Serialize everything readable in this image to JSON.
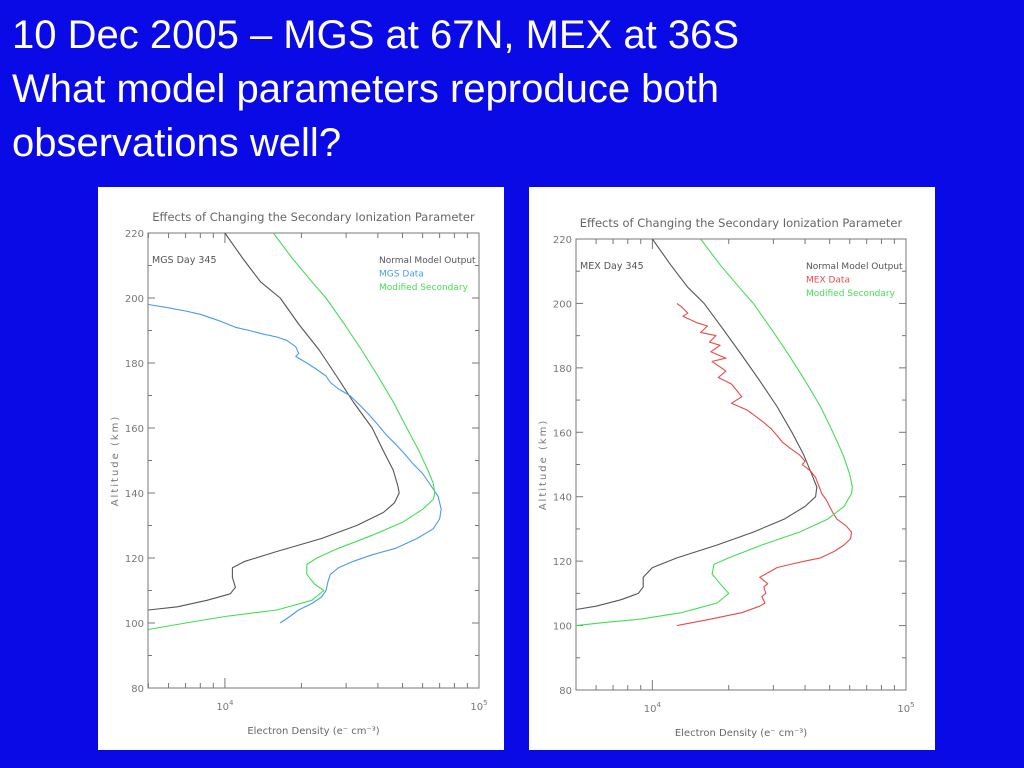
{
  "slide": {
    "title_lines": [
      "10 Dec 2005 – MGS at 67N, MEX at 36S",
      "What model parameters reproduce both",
      "observations well?"
    ]
  },
  "colors": {
    "background": "#0a0ae6",
    "normal": "#555555",
    "mgs": "#4a9be8",
    "mex": "#e84a4a",
    "modified": "#44dd55",
    "axis": "#777777"
  },
  "chart_data": [
    {
      "type": "line",
      "title": "Effects of Changing the Secondary Ionization Parameter",
      "annotation": "MGS Day 345",
      "xlabel": "Electron Density (e⁻ cm⁻³)",
      "ylabel": "Altitude (km)",
      "xscale": "log",
      "xlim": [
        4980,
        100000
      ],
      "ylim": [
        80,
        220
      ],
      "yticks": [
        80,
        100,
        120,
        140,
        160,
        180,
        200,
        220
      ],
      "ytick_labels": [
        "80",
        "100",
        "120",
        "140",
        "160",
        "180",
        "200",
        "220"
      ],
      "xtick_labels": [
        {
          "value": 10000,
          "base": "10",
          "exp": "4"
        },
        {
          "value": 100000,
          "base": "10",
          "exp": "5"
        }
      ],
      "legend_position": "top-right",
      "series": [
        {
          "name": "Normal Model Output",
          "color_key": "normal",
          "points": [
            [
              10000,
              220
            ],
            [
              11800,
              212
            ],
            [
              13800,
              205
            ],
            [
              16500,
              200
            ],
            [
              19500,
              192
            ],
            [
              23500,
              184
            ],
            [
              27500,
              176
            ],
            [
              32000,
              168
            ],
            [
              38000,
              160
            ],
            [
              42000,
              153
            ],
            [
              46000,
              147
            ],
            [
              48000,
              142
            ],
            [
              48500,
              140
            ],
            [
              46500,
              137
            ],
            [
              42000,
              134
            ],
            [
              33000,
              130
            ],
            [
              24000,
              126
            ],
            [
              16000,
              122
            ],
            [
              12000,
              119
            ],
            [
              10700,
              117
            ],
            [
              10700,
              114
            ],
            [
              11000,
              111
            ],
            [
              10500,
              109
            ],
            [
              8500,
              107
            ],
            [
              6500,
              105
            ],
            [
              5000,
              104
            ]
          ]
        },
        {
          "name": "MGS Data",
          "color_key": "mgs",
          "points": [
            [
              5000,
              198
            ],
            [
              6000,
              197
            ],
            [
              7000,
              196
            ],
            [
              8000,
              195
            ],
            [
              9500,
              193
            ],
            [
              11000,
              191
            ],
            [
              12500,
              190
            ],
            [
              14000,
              189
            ],
            [
              16000,
              188
            ],
            [
              17500,
              187
            ],
            [
              19000,
              185
            ],
            [
              19500,
              183
            ],
            [
              19000,
              182
            ],
            [
              21000,
              180
            ],
            [
              23000,
              178
            ],
            [
              25000,
              176
            ],
            [
              26000,
              174
            ],
            [
              28000,
              172
            ],
            [
              31000,
              170
            ],
            [
              34000,
              167
            ],
            [
              37000,
              164
            ],
            [
              40000,
              161
            ],
            [
              43000,
              158
            ],
            [
              47000,
              155
            ],
            [
              51000,
              152
            ],
            [
              55000,
              149
            ],
            [
              60000,
              146
            ],
            [
              65000,
              142
            ],
            [
              69000,
              139
            ],
            [
              71000,
              135
            ],
            [
              70000,
              132
            ],
            [
              66000,
              129
            ],
            [
              57000,
              126
            ],
            [
              47000,
              123
            ],
            [
              38000,
              121
            ],
            [
              32000,
              119
            ],
            [
              28000,
              117
            ],
            [
              26000,
              115
            ],
            [
              25500,
              113
            ],
            [
              25000,
              110
            ],
            [
              24000,
              108
            ],
            [
              22000,
              106
            ],
            [
              19500,
              104
            ],
            [
              18000,
              102
            ],
            [
              16500,
              100
            ]
          ]
        },
        {
          "name": "Modified Secondary",
          "color_key": "modified",
          "points": [
            [
              15500,
              220
            ],
            [
              18500,
              212
            ],
            [
              22000,
              205
            ],
            [
              25000,
              200
            ],
            [
              29500,
              192
            ],
            [
              34500,
              184
            ],
            [
              40000,
              176
            ],
            [
              46000,
              168
            ],
            [
              52000,
              160
            ],
            [
              58000,
              153
            ],
            [
              63000,
              147
            ],
            [
              66000,
              143
            ],
            [
              67000,
              140
            ],
            [
              66000,
              138
            ],
            [
              60000,
              135
            ],
            [
              50000,
              131
            ],
            [
              38000,
              127
            ],
            [
              28000,
              123
            ],
            [
              23000,
              120
            ],
            [
              21000,
              118
            ],
            [
              21000,
              115
            ],
            [
              22500,
              112
            ],
            [
              24500,
              110
            ],
            [
              22000,
              107
            ],
            [
              16000,
              104
            ],
            [
              10000,
              102
            ],
            [
              7000,
              100
            ],
            [
              5000,
              98
            ]
          ]
        }
      ]
    },
    {
      "type": "line",
      "title": "Effects of Changing the Secondary Ionization Parameter",
      "annotation": "MEX Day 345",
      "xlabel": "Electron Density (e⁻ cm⁻³)",
      "ylabel": "Altitude (km)",
      "xscale": "log",
      "xlim": [
        5000,
        100000
      ],
      "ylim": [
        80,
        220
      ],
      "yticks": [
        80,
        100,
        120,
        140,
        160,
        180,
        200,
        220
      ],
      "ytick_labels": [
        "80",
        "100",
        "120",
        "140",
        "160",
        "180",
        "200",
        "220"
      ],
      "xtick_labels": [
        {
          "value": 10000,
          "base": "10",
          "exp": "4"
        },
        {
          "value": 100000,
          "base": "10",
          "exp": "5"
        }
      ],
      "legend_position": "top-right",
      "series": [
        {
          "name": "Normal Model Output",
          "color_key": "normal",
          "points": [
            [
              10000,
              220
            ],
            [
              11800,
              212
            ],
            [
              13800,
              205
            ],
            [
              16000,
              200
            ],
            [
              19000,
              192
            ],
            [
              22500,
              184
            ],
            [
              26500,
              176
            ],
            [
              31000,
              168
            ],
            [
              35500,
              160
            ],
            [
              39500,
              153
            ],
            [
              42500,
              147
            ],
            [
              44500,
              143
            ],
            [
              44000,
              140
            ],
            [
              40000,
              137
            ],
            [
              33000,
              133
            ],
            [
              25000,
              129
            ],
            [
              18000,
              125
            ],
            [
              12500,
              121
            ],
            [
              10000,
              118
            ],
            [
              9200,
              115
            ],
            [
              9200,
              112
            ],
            [
              8800,
              110
            ],
            [
              7500,
              108
            ],
            [
              6000,
              106
            ],
            [
              5000,
              105
            ]
          ]
        },
        {
          "name": "MEX Data",
          "color_key": "mex",
          "points": [
            [
              12500,
              200
            ],
            [
              13000,
              199
            ],
            [
              13800,
              197
            ],
            [
              13200,
              196
            ],
            [
              15000,
              194
            ],
            [
              16500,
              193
            ],
            [
              15500,
              191
            ],
            [
              17800,
              190
            ],
            [
              16800,
              188
            ],
            [
              18500,
              187
            ],
            [
              17000,
              185
            ],
            [
              19500,
              183
            ],
            [
              17200,
              182
            ],
            [
              19500,
              179
            ],
            [
              18200,
              177
            ],
            [
              20500,
              175
            ],
            [
              21500,
              173
            ],
            [
              22500,
              171
            ],
            [
              20500,
              169
            ],
            [
              23500,
              167
            ],
            [
              25500,
              165
            ],
            [
              27500,
              163
            ],
            [
              29500,
              161
            ],
            [
              31000,
              159
            ],
            [
              32500,
              157
            ],
            [
              35000,
              155
            ],
            [
              38000,
              153
            ],
            [
              40000,
              151
            ],
            [
              39000,
              150
            ],
            [
              42000,
              148
            ],
            [
              44000,
              146
            ],
            [
              45500,
              143
            ],
            [
              46500,
              141
            ],
            [
              48500,
              139
            ],
            [
              50000,
              137
            ],
            [
              51500,
              135
            ],
            [
              53500,
              133
            ],
            [
              58000,
              131
            ],
            [
              61000,
              129
            ],
            [
              60500,
              127
            ],
            [
              57000,
              125
            ],
            [
              52000,
              123
            ],
            [
              46000,
              121
            ],
            [
              40000,
              120
            ],
            [
              35000,
              119
            ],
            [
              31000,
              118
            ],
            [
              28000,
              116
            ],
            [
              26500,
              115
            ],
            [
              28500,
              113
            ],
            [
              27500,
              112
            ],
            [
              28000,
              110
            ],
            [
              27000,
              109
            ],
            [
              27800,
              107
            ],
            [
              26500,
              106
            ],
            [
              22500,
              104
            ],
            [
              19500,
              103
            ],
            [
              17000,
              102
            ],
            [
              14500,
              101
            ],
            [
              12500,
              100
            ]
          ]
        },
        {
          "name": "Modified Secondary",
          "color_key": "modified",
          "points": [
            [
              15500,
              220
            ],
            [
              18500,
              212
            ],
            [
              22000,
              205
            ],
            [
              25000,
              200
            ],
            [
              29500,
              192
            ],
            [
              34500,
              184
            ],
            [
              40000,
              176
            ],
            [
              46000,
              168
            ],
            [
              51500,
              160
            ],
            [
              56500,
              153
            ],
            [
              60000,
              147
            ],
            [
              61500,
              143
            ],
            [
              61000,
              141
            ],
            [
              57000,
              137
            ],
            [
              49000,
              133
            ],
            [
              38000,
              129
            ],
            [
              27000,
              125
            ],
            [
              20000,
              121
            ],
            [
              17500,
              119
            ],
            [
              17200,
              116
            ],
            [
              18500,
              113
            ],
            [
              20000,
              110
            ],
            [
              18000,
              107
            ],
            [
              13000,
              104
            ],
            [
              9000,
              102
            ],
            [
              6500,
              101
            ],
            [
              5000,
              100
            ]
          ]
        }
      ]
    }
  ]
}
